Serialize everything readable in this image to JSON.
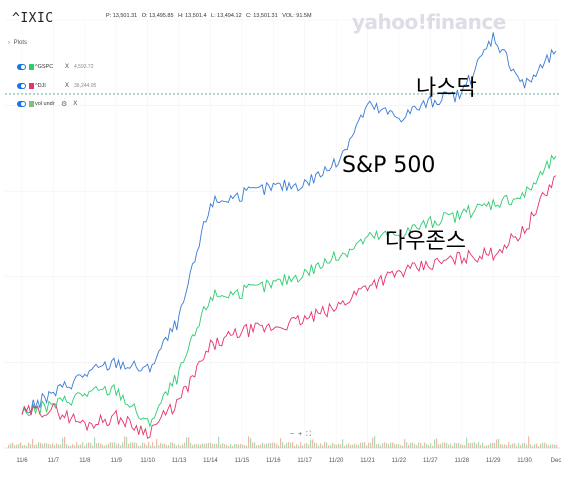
{
  "header": {
    "symbol": "^IXIC",
    "ohlc": [
      "P: 13,501.31",
      "O: 13,495.85",
      "H: 13,501.4",
      "L: 13,494.12",
      "C: 13,501.31",
      "VOL: 91.5M"
    ]
  },
  "watermark": "yahoo!finance",
  "plots": {
    "title": "Plots",
    "items": [
      {
        "label": "^GSPC",
        "value": "4,593.72",
        "color": "#2ecc71"
      },
      {
        "label": "^DJI",
        "value": "36,244.05",
        "color": "#e6336a"
      },
      {
        "label": "vol undr",
        "value": ""
      }
    ],
    "remove_label": "X",
    "settings_icon": "gear-icon"
  },
  "annotations": {
    "nasdaq": "나스닥",
    "sp500": "S&P 500",
    "dow": "다우존스"
  },
  "zoom": {
    "minus": "−",
    "plus": "+",
    "fit": "⛶"
  },
  "chart_data": {
    "type": "line",
    "x_ticks": [
      "11/6",
      "11/7",
      "11/8",
      "11/9",
      "11/10",
      "11/13",
      "11/14",
      "11/15",
      "11/16",
      "11/17",
      "11/20",
      "11/21",
      "11/22",
      "11/27",
      "11/28",
      "11/29",
      "11/30",
      "Dec"
    ],
    "series": [
      {
        "name": "^IXIC",
        "color": "#3a7bd5",
        "values": [
          -0.1,
          0.4,
          0.9,
          1.2,
          1.0,
          2.3,
          5.3,
          5.5,
          5.7,
          5.8,
          6.3,
          7.8,
          7.5,
          7.9,
          8.1,
          9.6,
          8.3,
          9.2
        ]
      },
      {
        "name": "^GSPC",
        "color": "#2ecc71",
        "values": [
          -0.1,
          0.1,
          0.4,
          0.5,
          -0.4,
          0.9,
          2.9,
          3.0,
          3.2,
          3.5,
          3.9,
          4.4,
          4.5,
          4.8,
          5.0,
          5.3,
          5.5,
          6.5
        ]
      },
      {
        "name": "^DJI",
        "color": "#e6336a",
        "values": [
          -0.1,
          0.0,
          -0.4,
          -0.2,
          -0.6,
          0.2,
          1.6,
          2.0,
          2.1,
          2.3,
          2.6,
          3.2,
          3.5,
          3.7,
          3.9,
          4.0,
          4.6,
          6.0
        ]
      }
    ],
    "reference_line": {
      "value": 8.1,
      "style": "dashed"
    },
    "ylim": [
      -1,
      10
    ]
  }
}
